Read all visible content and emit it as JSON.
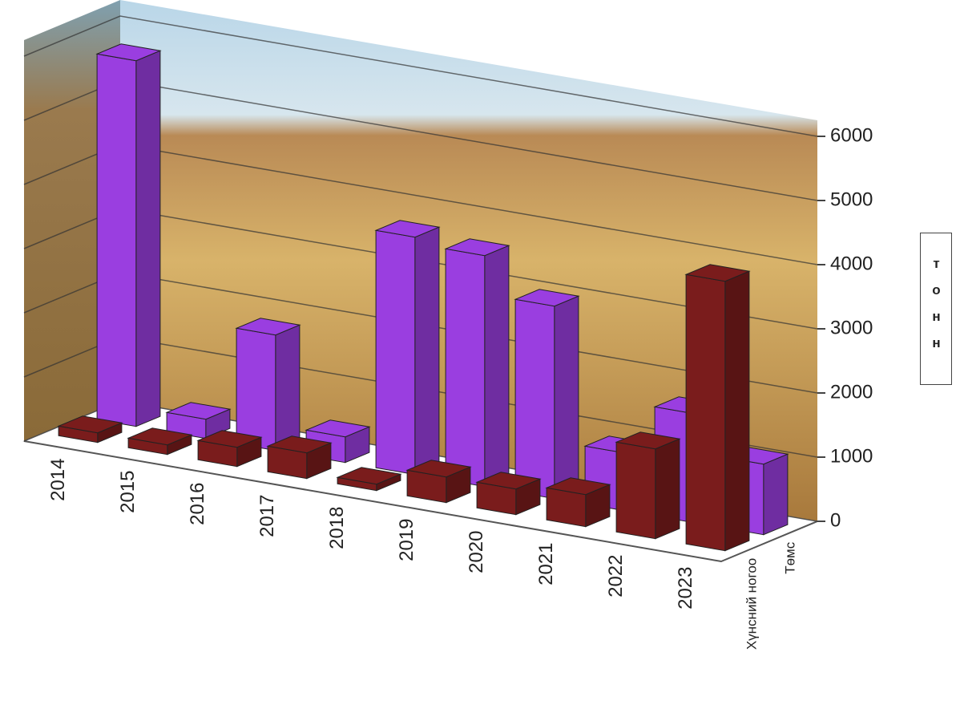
{
  "chart_data": {
    "type": "bar",
    "categories": [
      "2014",
      "2015",
      "2016",
      "2017",
      "2018",
      "2019",
      "2020",
      "2021",
      "2022",
      "2023"
    ],
    "series": [
      {
        "name": "Хүнсний ногоо",
        "color": "#7a1c1c",
        "values": [
          150,
          150,
          300,
          400,
          100,
          400,
          400,
          500,
          1400,
          4200
        ]
      },
      {
        "name": "Төмс",
        "color": "#9a3ee0",
        "values": [
          5700,
          300,
          1800,
          400,
          3700,
          3600,
          3000,
          900,
          1700,
          1100
        ]
      }
    ],
    "ylim": [
      0,
      6000
    ],
    "yticks": [
      0,
      1000,
      2000,
      3000,
      4000,
      5000,
      6000
    ],
    "y_label": "тонн",
    "grid": true
  }
}
